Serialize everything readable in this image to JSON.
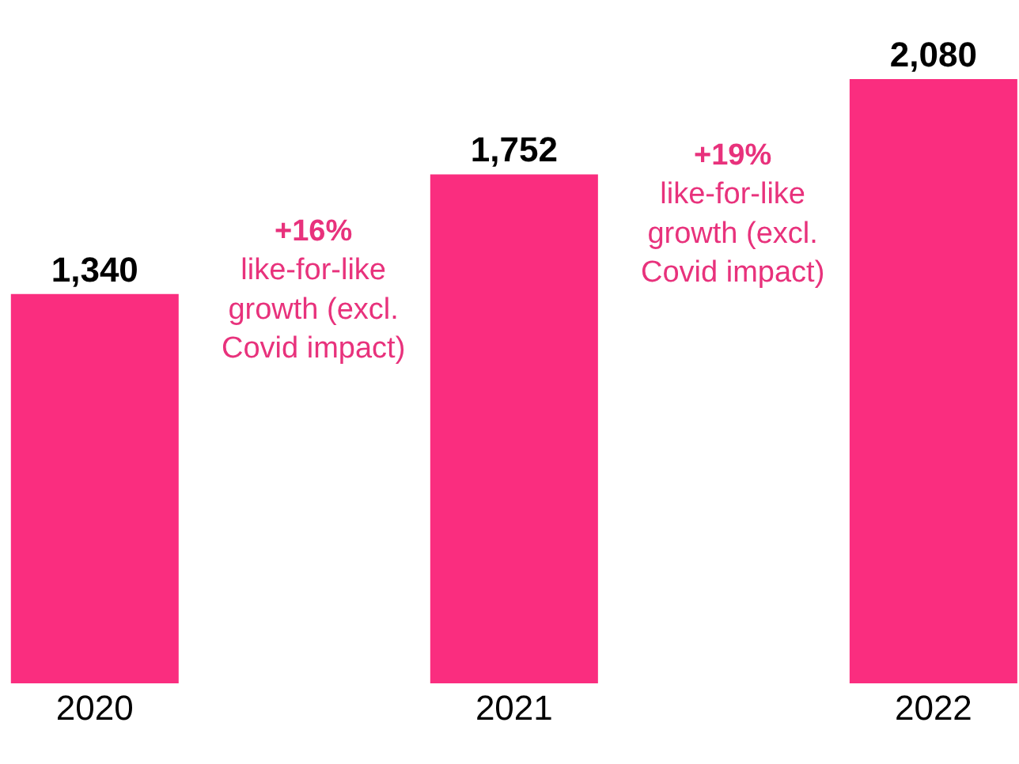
{
  "chart_data": {
    "type": "bar",
    "categories": [
      "2020",
      "2021",
      "2022"
    ],
    "values": [
      1340,
      1752,
      2080
    ],
    "value_labels": [
      "1,340",
      "1,752",
      "2,080"
    ],
    "color": "#fa2d7f",
    "legend": false,
    "annotations": [
      "+16%\nlike-for-like\ngrowth (excl.\nCovid impact)",
      "+19%\nlike-for-like\ngrowth (excl.\nCovid impact)"
    ]
  }
}
